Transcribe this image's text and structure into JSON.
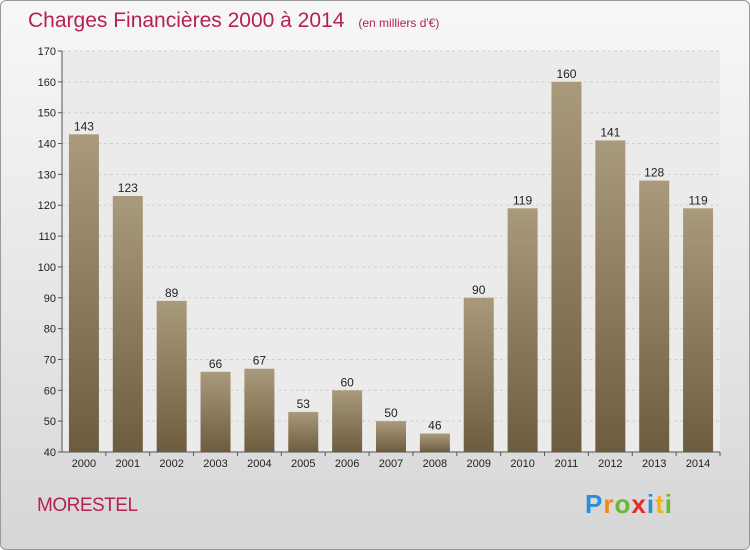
{
  "header": {
    "title": "Charges Financières 2000 à 2014",
    "subtitle": "(en milliers d'€)"
  },
  "footer": {
    "city": "MORESTEL",
    "logo": "Proxiti"
  },
  "colors": {
    "bar_top": "#aa9a7c",
    "bar_bottom": "#6e5c3e",
    "title": "#b5224f"
  },
  "chart_data": {
    "type": "bar",
    "title": "Charges Financières 2000 à 2014",
    "subtitle": "(en milliers d'€)",
    "categories": [
      "2000",
      "2001",
      "2002",
      "2003",
      "2004",
      "2005",
      "2006",
      "2007",
      "2008",
      "2009",
      "2010",
      "2011",
      "2012",
      "2013",
      "2014"
    ],
    "values": [
      143,
      123,
      89,
      66,
      67,
      53,
      60,
      50,
      46,
      90,
      119,
      160,
      141,
      128,
      119
    ],
    "ylim": [
      40,
      170
    ],
    "yticks": [
      40,
      50,
      60,
      70,
      80,
      90,
      100,
      110,
      120,
      130,
      140,
      150,
      160,
      170
    ],
    "grid": true,
    "legend": "none"
  }
}
